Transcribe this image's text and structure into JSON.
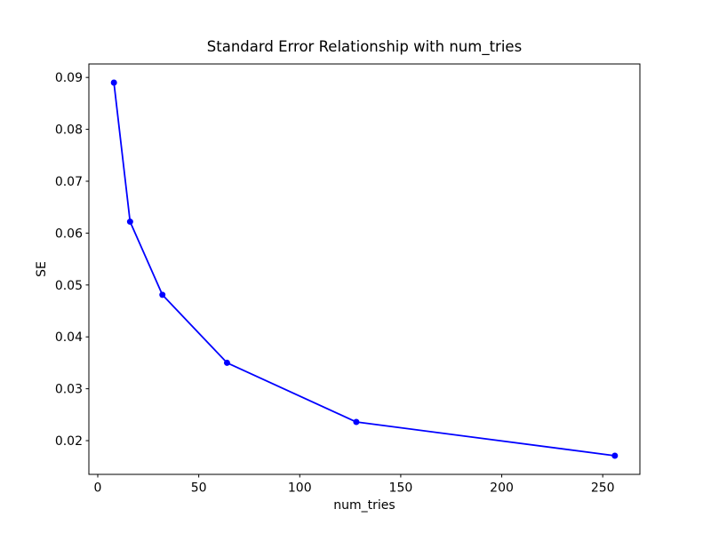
{
  "figure": {
    "background": "#ffffff"
  },
  "chart_data": {
    "type": "line",
    "title": "Standard Error Relationship with num_tries",
    "xlabel": "num_tries",
    "ylabel": "SE",
    "x": [
      8,
      16,
      32,
      64,
      128,
      256
    ],
    "y": [
      0.089,
      0.0622,
      0.0481,
      0.035,
      0.0236,
      0.0171
    ],
    "line_color": "#0000ff",
    "marker": "circle",
    "marker_radius": 3.5,
    "line_width": 1.8,
    "xlim": [
      -4.4,
      268.4
    ],
    "ylim": [
      0.0135,
      0.0926
    ],
    "xtick_values": [
      0,
      50,
      100,
      150,
      200,
      250
    ],
    "xtick_labels": [
      "0",
      "50",
      "100",
      "150",
      "200",
      "250"
    ],
    "ytick_values": [
      0.02,
      0.03,
      0.04,
      0.05,
      0.06,
      0.07,
      0.08,
      0.09
    ],
    "ytick_labels": [
      "0.02",
      "0.03",
      "0.04",
      "0.05",
      "0.06",
      "0.07",
      "0.08",
      "0.09"
    ],
    "grid": false,
    "legend": null,
    "axes_color": "#000000"
  }
}
